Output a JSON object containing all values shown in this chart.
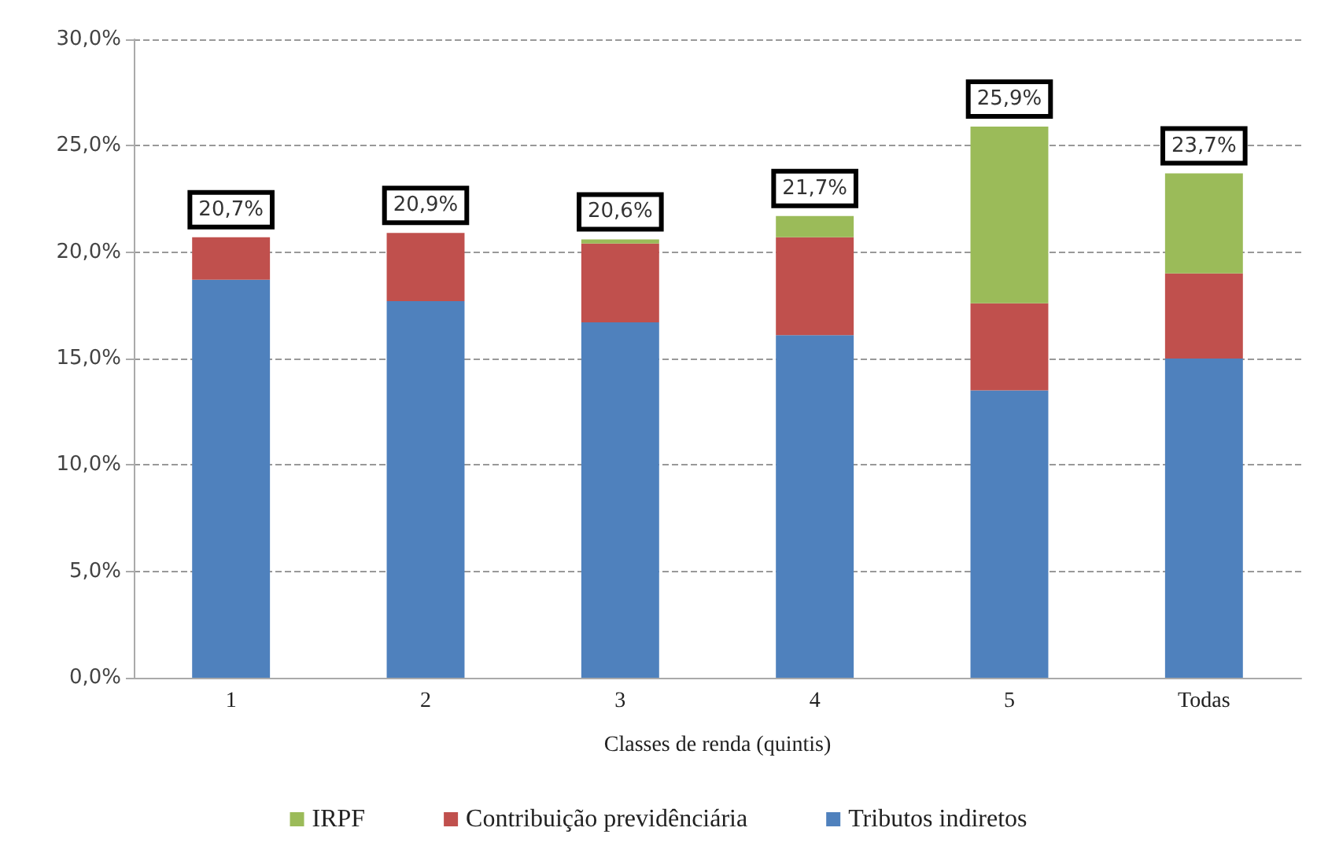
{
  "chart_data": {
    "type": "bar",
    "stacked": true,
    "xlabel": "Classes de renda (quintis)",
    "categories": [
      "1",
      "2",
      "3",
      "4",
      "5",
      "Todas"
    ],
    "series": [
      {
        "name": "Tributos indiretos",
        "color": "#4f81bd",
        "values": [
          18.7,
          17.7,
          16.7,
          16.1,
          13.5,
          15.0
        ]
      },
      {
        "name": "Contribuição previdênciária",
        "color": "#c0504d",
        "values": [
          2.0,
          3.2,
          3.7,
          4.6,
          4.1,
          4.0
        ]
      },
      {
        "name": "IRPF",
        "color": "#9bbb59",
        "values": [
          0.0,
          0.0,
          0.2,
          1.0,
          8.3,
          4.7
        ]
      }
    ],
    "totals": [
      "20,7%",
      "20,9%",
      "20,6%",
      "21,7%",
      "25,9%",
      "23,7%"
    ],
    "ylim": [
      0,
      30
    ],
    "yticks": [
      {
        "value": 0,
        "label": "0,0%"
      },
      {
        "value": 5,
        "label": "5,0%"
      },
      {
        "value": 10,
        "label": "10,0%"
      },
      {
        "value": 15,
        "label": "15,0%"
      },
      {
        "value": 20,
        "label": "20,0%"
      },
      {
        "value": 25,
        "label": "25,0%"
      },
      {
        "value": 30,
        "label": "30,0%"
      }
    ],
    "grid": "y",
    "legend": "bottom"
  }
}
